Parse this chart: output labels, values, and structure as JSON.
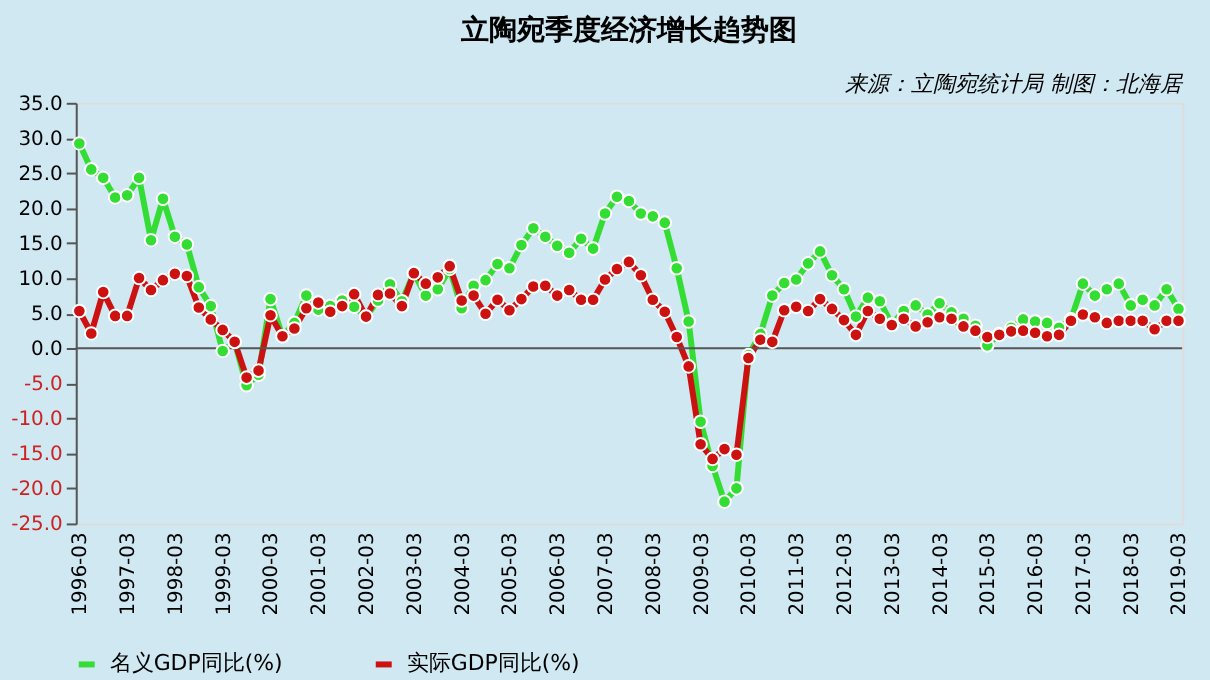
{
  "chart_data": {
    "type": "line",
    "title": "立陶宛季度经济增长趋势图",
    "annotations": [
      "来源：立陶宛统计局 制图：北海居"
    ],
    "categories": [
      "1996-03",
      null,
      null,
      null,
      "1997-03",
      null,
      null,
      null,
      "1998-03",
      null,
      null,
      null,
      "1999-03",
      null,
      null,
      null,
      "2000-03",
      null,
      null,
      null,
      "2001-03",
      null,
      null,
      null,
      "2002-03",
      null,
      null,
      null,
      "2003-03",
      null,
      null,
      null,
      "2004-03",
      null,
      null,
      null,
      "2005-03",
      null,
      null,
      null,
      "2006-03",
      null,
      null,
      null,
      "2007-03",
      null,
      null,
      null,
      "2008-03",
      null,
      null,
      null,
      "2009-03",
      null,
      null,
      null,
      "2010-03",
      null,
      null,
      null,
      "2011-03",
      null,
      null,
      null,
      "2012-03",
      null,
      null,
      null,
      "2013-03",
      null,
      null,
      null,
      "2014-03",
      null,
      null,
      null,
      "2015-03",
      null,
      null,
      null,
      "2016-03",
      null,
      null,
      null,
      "2017-03",
      null,
      null,
      null,
      "2018-03",
      null,
      null,
      null,
      "2019-03"
    ],
    "series": [
      {
        "name": "名义GDP同比(%)",
        "color": "#33dd33",
        "values": [
          29.2,
          25.5,
          24.3,
          21.5,
          21.8,
          24.3,
          15.4,
          21.3,
          15.9,
          14.8,
          8.7,
          6.0,
          -0.4,
          0.9,
          -5.3,
          -3.8,
          7.0,
          1.7,
          3.6,
          7.5,
          5.5,
          6.0,
          6.8,
          5.9,
          4.5,
          6.8,
          9.1,
          6.7,
          10.7,
          7.5,
          8.4,
          11.3,
          5.7,
          8.9,
          9.7,
          12.0,
          11.4,
          14.7,
          17.1,
          15.9,
          14.6,
          13.6,
          15.6,
          14.2,
          19.2,
          21.6,
          21.0,
          19.2,
          18.8,
          17.9,
          11.4,
          3.8,
          -10.5,
          -16.8,
          -21.9,
          -20.0,
          -1.0,
          2.0,
          7.5,
          9.3,
          9.8,
          12.1,
          13.8,
          10.4,
          8.4,
          4.5,
          7.2,
          6.7,
          3.4,
          5.3,
          6.1,
          4.8,
          6.4,
          5.1,
          4.2,
          3.2,
          0.4,
          2.0,
          2.9,
          4.1,
          3.8,
          3.6,
          2.9,
          4.1,
          9.2,
          7.5,
          8.4,
          9.2,
          6.1,
          6.9,
          6.1,
          8.4,
          5.6
        ]
      },
      {
        "name": "实际GDP同比(%)",
        "color": "#cc1111",
        "values": [
          5.3,
          2.1,
          8.0,
          4.6,
          4.6,
          10.0,
          8.3,
          9.7,
          10.6,
          10.3,
          5.8,
          4.1,
          2.6,
          0.9,
          -4.2,
          -3.2,
          4.7,
          1.7,
          2.8,
          5.7,
          6.5,
          5.2,
          6.0,
          7.7,
          4.5,
          7.6,
          7.8,
          6.0,
          10.7,
          9.2,
          10.1,
          11.7,
          6.8,
          7.5,
          4.9,
          6.9,
          5.4,
          7.0,
          8.8,
          8.9,
          7.5,
          8.3,
          6.9,
          6.9,
          9.8,
          11.3,
          12.3,
          10.4,
          6.9,
          5.2,
          1.6,
          -2.6,
          -13.7,
          -15.8,
          -14.4,
          -15.2,
          -1.4,
          1.2,
          0.9,
          5.4,
          5.9,
          5.3,
          7.0,
          5.6,
          4.0,
          1.9,
          5.3,
          4.2,
          3.3,
          4.2,
          3.1,
          3.7,
          4.4,
          4.2,
          3.1,
          2.5,
          1.6,
          1.9,
          2.4,
          2.5,
          2.2,
          1.7,
          1.9,
          3.9,
          4.8,
          4.4,
          3.6,
          3.9,
          3.9,
          3.9,
          2.7,
          3.9,
          3.9
        ]
      }
    ],
    "ylim": [
      -25,
      35
    ],
    "yticks": [
      {
        "value": 35,
        "label": "35.0"
      },
      {
        "value": 30,
        "label": "30.0"
      },
      {
        "value": 25,
        "label": "25.0"
      },
      {
        "value": 20,
        "label": "20.0"
      },
      {
        "value": 15,
        "label": "15.0"
      },
      {
        "value": 10,
        "label": "10.0"
      },
      {
        "value": 5,
        "label": "5.0"
      },
      {
        "value": 0,
        "label": "0.0"
      },
      {
        "value": -5,
        "label": "-5.0"
      },
      {
        "value": -10,
        "label": "-10.0"
      },
      {
        "value": -15,
        "label": "-15.0"
      },
      {
        "value": -20,
        "label": "-20.0"
      },
      {
        "value": -25,
        "label": "-25.0"
      }
    ],
    "ref_lines": [
      {
        "axis": "y",
        "value": 0,
        "color": "#555555"
      }
    ],
    "grid": false,
    "legend": "bottom",
    "marker": "circle",
    "line_style": "solid"
  }
}
